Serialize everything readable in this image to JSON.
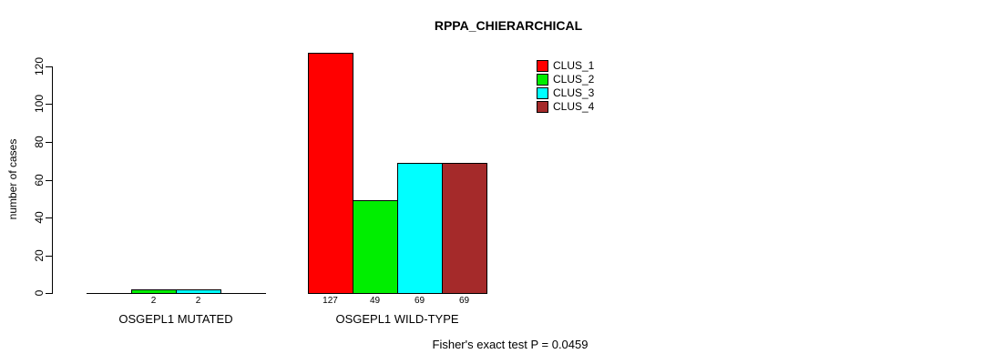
{
  "title": "RPPA_CHIERARCHICAL",
  "footer": "Fisher's exact test P = 0.0459",
  "chart_data": {
    "type": "bar",
    "title": "RPPA_CHIERARCHICAL",
    "xlabel": "",
    "ylabel": "number of cases",
    "ylim": [
      0,
      120
    ],
    "yticks": [
      0,
      20,
      40,
      60,
      80,
      100,
      120
    ],
    "grid": false,
    "legend_position": "top-right",
    "categories": [
      "OSGEPL1 MUTATED",
      "OSGEPL1 WILD-TYPE"
    ],
    "series": [
      {
        "name": "CLUS_1",
        "color": "#FF0000",
        "values": [
          0,
          127
        ]
      },
      {
        "name": "CLUS_2",
        "color": "#00EE00",
        "values": [
          2,
          49
        ]
      },
      {
        "name": "CLUS_3",
        "color": "#00FFFF",
        "values": [
          2,
          69
        ]
      },
      {
        "name": "CLUS_4",
        "color": "#A52A2A",
        "values": [
          0,
          69
        ]
      }
    ],
    "bar_labels": [
      [
        "",
        "2",
        "2",
        ""
      ],
      [
        "127",
        "49",
        "69",
        "69"
      ]
    ],
    "annotation": "Fisher's exact test P = 0.0459"
  }
}
